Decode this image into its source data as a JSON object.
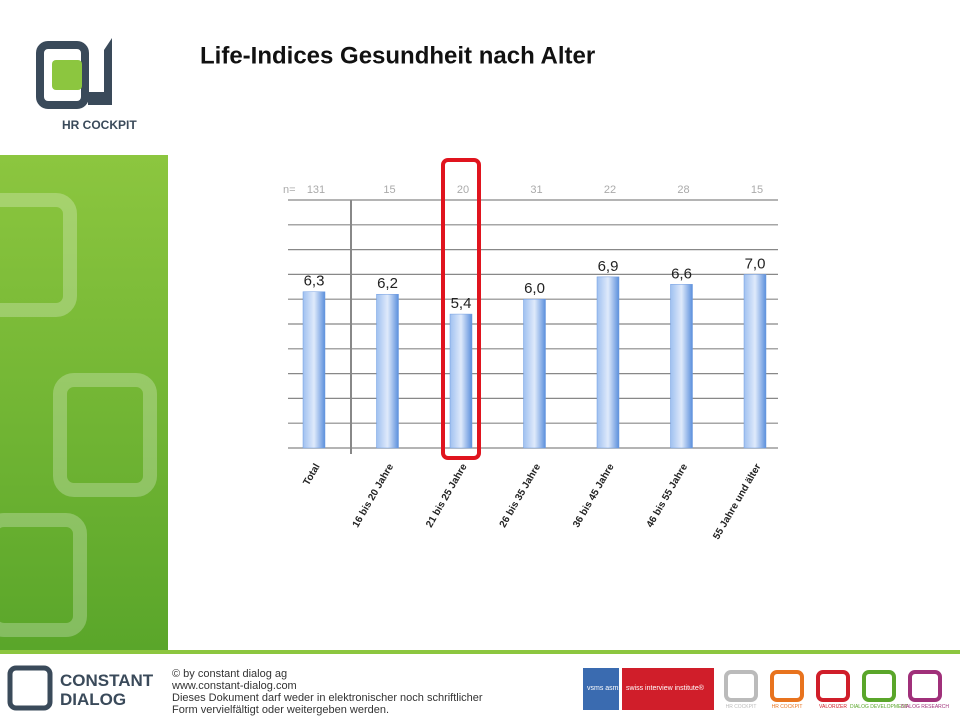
{
  "chart_data": {
    "type": "bar",
    "title": "Life-Indices Gesundheit nach Alter",
    "categories": [
      "Total",
      "16 bis 20 Jahre",
      "21 bis 25 Jahre",
      "26 bis 35 Jahre",
      "36 bis 45 Jahre",
      "46 bis 55 Jahre",
      "55 Jahre und älter"
    ],
    "values": [
      6.3,
      6.2,
      5.4,
      6.0,
      6.9,
      6.6,
      7.0
    ],
    "value_labels": [
      "6,3",
      "6,2",
      "5,4",
      "6,0",
      "6,9",
      "6,6",
      "7,0"
    ],
    "n_label": "n=",
    "n": [
      131,
      15,
      20,
      31,
      22,
      28,
      15
    ],
    "color": "#6f9be0",
    "highlight_color": "#e0141e",
    "highlight_index": 2,
    "ylim": [
      0,
      10
    ],
    "yticks": [
      0,
      1,
      2,
      3,
      4,
      5,
      6,
      7,
      8,
      9,
      10
    ],
    "grid": true
  },
  "sidebar": {
    "logo_text": "HR COCKPIT"
  },
  "footer": {
    "brand": [
      "CONSTANT",
      "DIALOG"
    ],
    "lines": [
      "© by constant dialog ag",
      "www.constant-dialog.com",
      "Dieses Dokument darf weder in elektronischer noch schriftlicher",
      "Form vervielfältigt oder weitergeben werden."
    ],
    "badges": [
      "vsms asms",
      "swiss interview institute®"
    ],
    "products": [
      "HR COCKPIT",
      "HR COCKPIT",
      "VALORIZER",
      "DIALOG DEVELOPMENT",
      "DIALOG RESEARCH"
    ]
  }
}
